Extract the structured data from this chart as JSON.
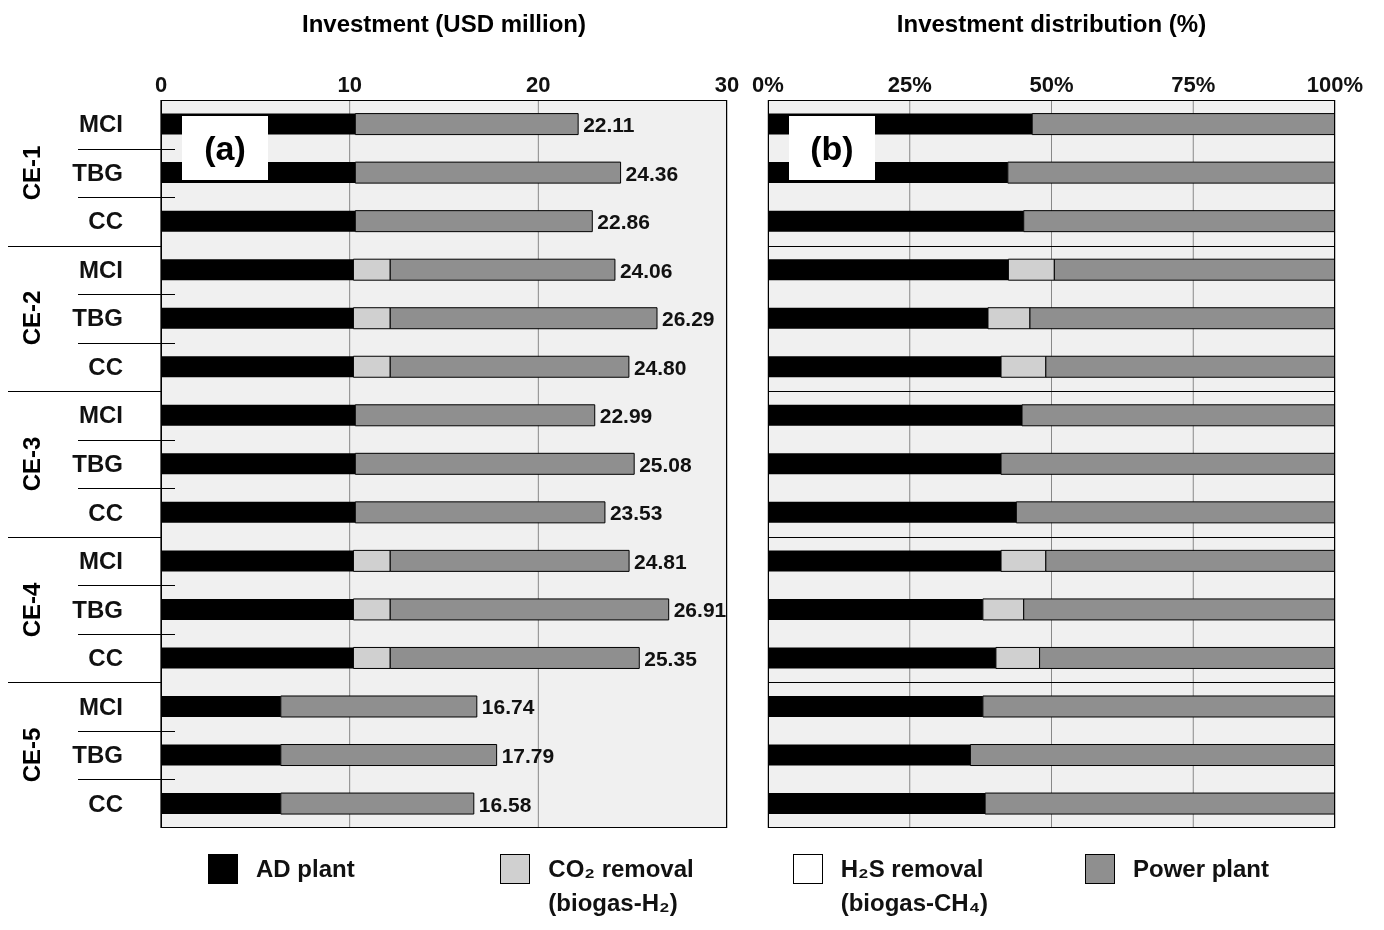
{
  "chart_data": [
    {
      "type": "bar",
      "orientation": "horizontal",
      "stacked": true,
      "title": "Investment (USD million)",
      "categories": [
        "MCI",
        "TBG",
        "CC",
        "MCI",
        "TBG",
        "CC",
        "MCI",
        "TBG",
        "CC",
        "MCI",
        "TBG",
        "CC",
        "MCI",
        "TBG",
        "CC"
      ],
      "series": [
        {
          "name": "AD plant",
          "color": "#000000",
          "values": [
            10.3,
            10.3,
            10.3,
            10.2,
            10.2,
            10.2,
            10.3,
            10.3,
            10.3,
            10.2,
            10.2,
            10.2,
            6.35,
            6.35,
            6.35
          ]
        },
        {
          "name": "CO₂ removal (biogas-H₂)",
          "color": "#d0d0d0",
          "values": [
            null,
            null,
            null,
            1.95,
            1.95,
            1.95,
            null,
            null,
            null,
            1.95,
            1.95,
            1.95,
            null,
            null,
            null
          ]
        },
        {
          "name": "H₂S removal (biogas-CH₄)",
          "color": "#ffffff",
          "values": [
            null,
            null,
            null,
            null,
            null,
            null,
            null,
            null,
            null,
            null,
            null,
            null,
            null,
            null,
            null
          ]
        },
        {
          "name": "Power plant",
          "color": "#8f8f8f",
          "values": [
            11.81,
            14.06,
            12.56,
            11.91,
            14.14,
            12.65,
            12.69,
            14.78,
            13.23,
            12.66,
            14.76,
            13.2,
            10.39,
            11.44,
            10.23
          ]
        }
      ],
      "totals": [
        "22.11",
        "24.36",
        "22.86",
        "24.06",
        "26.29",
        "24.80",
        "22.99",
        "25.08",
        "23.53",
        "24.81",
        "26.91",
        "25.35",
        "16.74",
        "17.79",
        "16.58"
      ],
      "xlim": [
        0,
        30
      ],
      "xticks": [
        0,
        10,
        20,
        30
      ],
      "grid": "x",
      "legend": "bottom",
      "annotations": [
        "(a)",
        "CE-1",
        "CE-2",
        "CE-3",
        "CE-4",
        "CE-5"
      ]
    },
    {
      "type": "bar",
      "orientation": "horizontal",
      "stacked": true,
      "title": "Investment distribution (%)",
      "categories": [
        null,
        null,
        null,
        null,
        null,
        null,
        null,
        null,
        null,
        null,
        null,
        null,
        null,
        null,
        null
      ],
      "series": [
        {
          "color": "#000000",
          "values": [
            46.6,
            42.3,
            45.1,
            42.4,
            38.8,
            41.1,
            44.8,
            41.1,
            43.8,
            41.1,
            37.9,
            40.2,
            37.9,
            35.7,
            38.3
          ]
        },
        {
          "color": "#d0d0d0",
          "values": [
            null,
            null,
            null,
            8.1,
            7.4,
            7.9,
            null,
            null,
            null,
            7.9,
            7.2,
            7.7,
            null,
            null,
            null
          ]
        },
        {
          "color": "#8f8f8f",
          "values": [
            53.4,
            57.7,
            54.9,
            49.5,
            53.8,
            51.0,
            55.2,
            58.9,
            56.2,
            51.0,
            54.9,
            52.1,
            62.1,
            64.3,
            61.7
          ]
        }
      ],
      "xlim": [
        0,
        100
      ],
      "xticks": [
        {
          "value": 0,
          "label": "0%"
        },
        {
          "value": 25,
          "label": "25%"
        },
        {
          "value": 50,
          "label": "50%"
        },
        {
          "value": 75,
          "label": "75%"
        },
        {
          "value": 100,
          "label": "100%"
        }
      ],
      "grid": "x",
      "tick_labels": "x",
      "annotations": [
        "(b)"
      ]
    }
  ]
}
